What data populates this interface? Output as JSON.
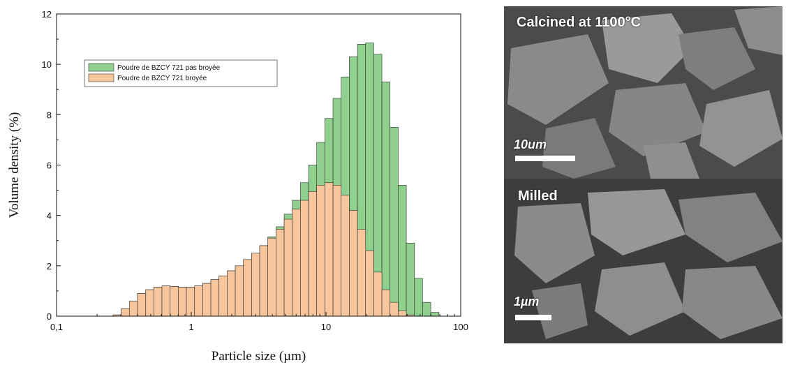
{
  "chart_data": {
    "type": "bar",
    "xlabel": "Particle size (µm)",
    "ylabel": "Volume density   (%)",
    "xscale": "log",
    "xlim": [
      0.1,
      100
    ],
    "ylim": [
      0,
      12
    ],
    "xticks": [
      "0,1",
      "1",
      "10",
      "100"
    ],
    "yticks": [
      "0",
      "2",
      "4",
      "6",
      "8",
      "10",
      "12"
    ],
    "legend_position": "top-left",
    "grid": false,
    "bin_edges": [
      0.263,
      0.302,
      0.347,
      0.399,
      0.459,
      0.527,
      0.606,
      0.697,
      0.801,
      0.92,
      1.058,
      1.216,
      1.397,
      1.606,
      1.846,
      2.122,
      2.438,
      2.803,
      3.221,
      3.702,
      4.255,
      4.891,
      5.621,
      6.461,
      7.426,
      8.535,
      9.81,
      11.275,
      12.959,
      14.895,
      17.12,
      19.677,
      22.616,
      25.994,
      29.876,
      34.339,
      39.468,
      45.363,
      52.139,
      59.927,
      68.878
    ],
    "series": [
      {
        "name": "Poudre de BZCY 721 pas broyée",
        "color": "#8fd08f",
        "values": [
          0.05,
          0.25,
          0.55,
          0.9,
          1.05,
          1.15,
          1.2,
          1.18,
          1.15,
          1.15,
          1.2,
          1.3,
          1.45,
          1.6,
          1.8,
          2.0,
          2.25,
          2.5,
          2.8,
          3.15,
          3.55,
          4.05,
          4.6,
          5.3,
          6.0,
          6.9,
          7.85,
          8.65,
          9.5,
          10.3,
          10.8,
          10.85,
          10.4,
          9.3,
          7.5,
          5.2,
          2.9,
          1.5,
          0.55,
          0.15
        ]
      },
      {
        "name": "Poudre de BZCY 721 broyée",
        "color": "#f7c69c",
        "values": [
          0.05,
          0.3,
          0.6,
          0.9,
          1.05,
          1.15,
          1.2,
          1.18,
          1.15,
          1.15,
          1.2,
          1.3,
          1.45,
          1.6,
          1.8,
          2.0,
          2.25,
          2.5,
          2.8,
          3.1,
          3.45,
          3.85,
          4.25,
          4.6,
          4.95,
          5.2,
          5.3,
          5.2,
          4.8,
          4.2,
          3.45,
          2.6,
          1.75,
          1.05,
          0.55,
          0.22,
          0.05,
          0,
          0,
          0
        ]
      }
    ]
  },
  "images": [
    {
      "label": "Calcined at 1100°C",
      "scale_label": "10um"
    },
    {
      "label": "Milled",
      "scale_label": "1µm"
    }
  ]
}
